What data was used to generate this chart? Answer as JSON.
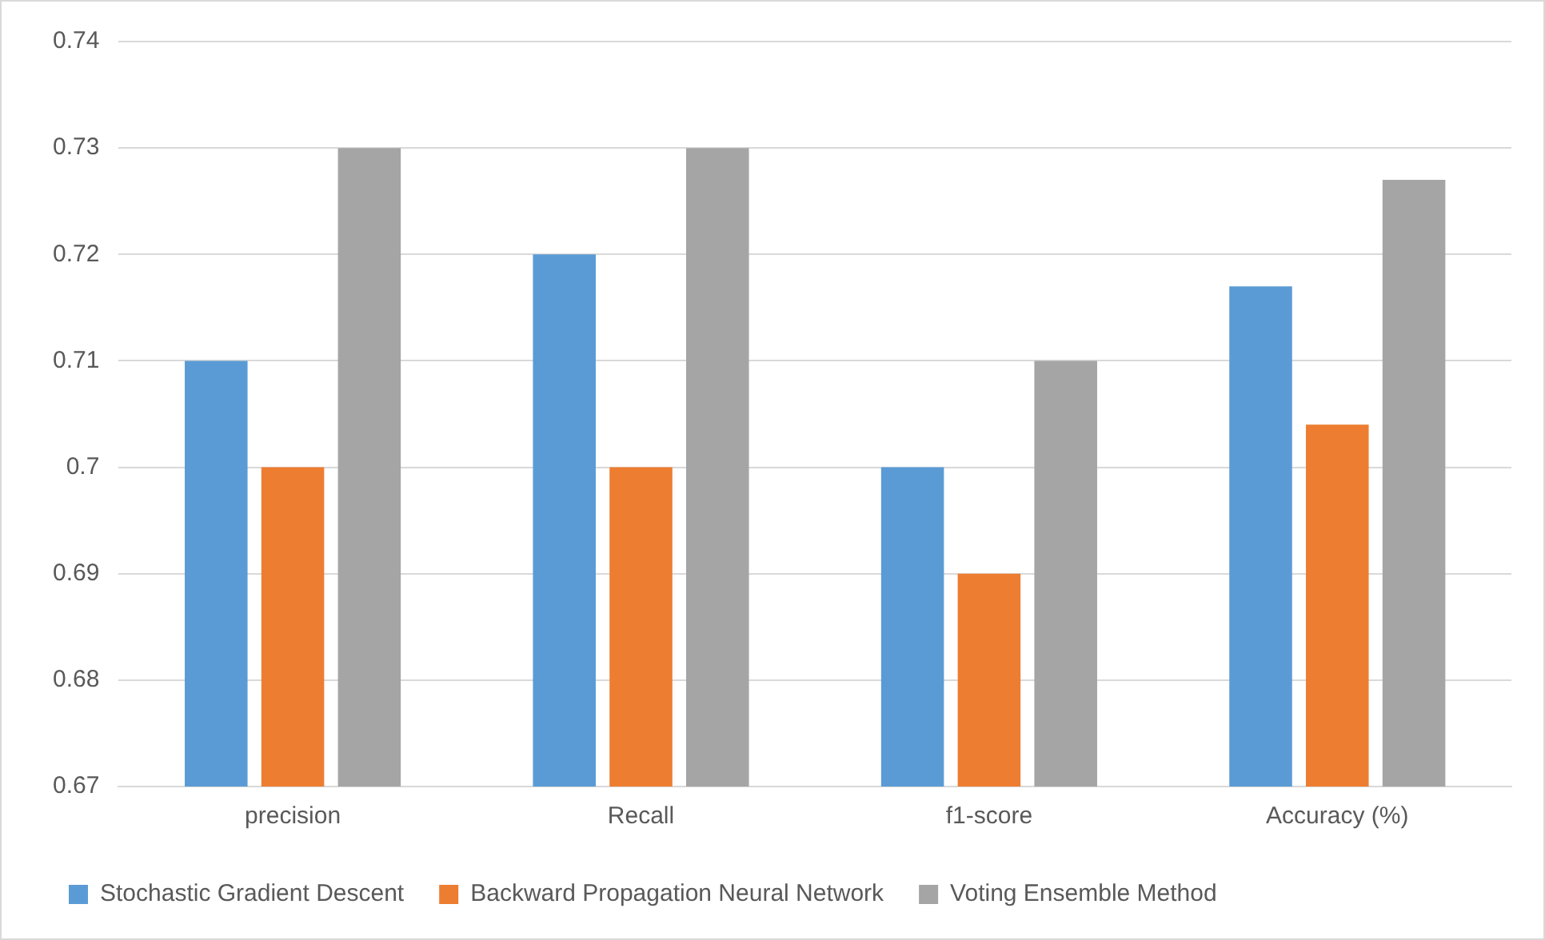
{
  "chart_data": {
    "type": "bar",
    "categories": [
      "precision",
      "Recall",
      "f1-score",
      "Accuracy (%)"
    ],
    "series": [
      {
        "name": "Stochastic Gradient Descent",
        "color": "#5b9bd5",
        "values": [
          0.71,
          0.72,
          0.7,
          0.717
        ]
      },
      {
        "name": "Backward Propagation Neural Network",
        "color": "#ed7d31",
        "values": [
          0.7,
          0.7,
          0.69,
          0.704
        ]
      },
      {
        "name": "Voting Ensemble Method",
        "color": "#a5a5a5",
        "values": [
          0.73,
          0.73,
          0.71,
          0.727
        ]
      }
    ],
    "ylim": [
      0.67,
      0.74
    ],
    "yticks": [
      0.67,
      0.68,
      0.69,
      0.7,
      0.71,
      0.72,
      0.73,
      0.74
    ],
    "grid": "y",
    "legend": "bottom"
  }
}
